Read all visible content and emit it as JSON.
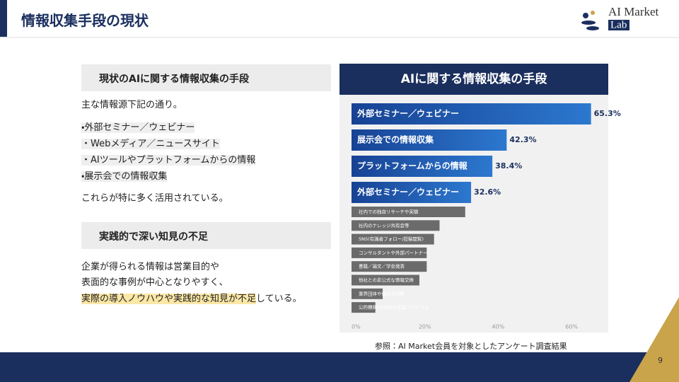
{
  "header": {
    "title": "情報収集手段の現状"
  },
  "logo": {
    "line1": "AI Market",
    "line2": "Lab"
  },
  "left": {
    "section1": {
      "heading": "現状のAIに関する情報収集の手段",
      "intro": "主な情報源下記の通り。",
      "bullets": [
        "・外部セミナー／ウェビナー",
        "・Webメディア／ニュースサイト",
        "・AIツールやプラットフォームからの情報",
        "・展示会での情報収集"
      ],
      "outro": "これらが特に多く活用されている。"
    },
    "section2": {
      "heading": "実践的で深い知見の不足",
      "lines": [
        "企業が得られる情報は営業目的や",
        "表面的な事例が中心となりやすく、"
      ],
      "highlight": "実際の導入ノウハウや実践的な知見が不足",
      "tail": "している。"
    }
  },
  "chart_data": {
    "type": "bar",
    "orientation": "horizontal",
    "title": "AIに関する情報収集の手段",
    "categories": [
      "外部セミナー／ウェビナー",
      "展示会での情報収集",
      "プラットフォームからの情報",
      "外部セミナー／ウェビナー",
      "社内での独自リサーチや実験",
      "社内のナレッジ共有会等",
      "SNS(有識者フォロー/投稿閲覧)",
      "コンサルタントや外部パートナー",
      "書籍／論文／学会発表",
      "他社との非公式な情報交換",
      "業界団体や協会の活動",
      "公的機関/自治体の支援プログラム"
    ],
    "values": [
      65.3,
      42.3,
      38.4,
      32.6,
      31,
      24,
      22.5,
      20.5,
      20.5,
      18.5,
      8.5,
      6.5
    ],
    "value_labels": [
      "65.3%",
      "42.3%",
      "38.4%",
      "32.6%",
      null,
      null,
      null,
      null,
      null,
      null,
      null,
      null
    ],
    "highlight_color": "#1f5bb0",
    "color": "#6b6b6b",
    "xlim": [
      0,
      70
    ],
    "xticks": [
      {
        "value": 0,
        "label": "0%"
      },
      {
        "value": 20,
        "label": "20%"
      },
      {
        "value": 40,
        "label": "40%"
      },
      {
        "value": 60,
        "label": "60%"
      }
    ]
  },
  "source": "参照：AI Market会員を対象としたアンケート調査結果",
  "page_number": "9"
}
